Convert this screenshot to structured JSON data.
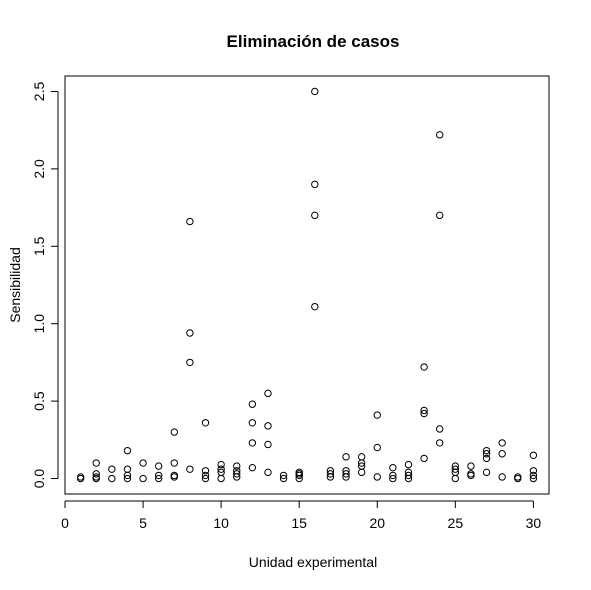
{
  "chart_data": {
    "type": "scatter",
    "title": "Eliminación de casos",
    "xlabel": "Unidad experimental",
    "ylabel": "Sensibilidad",
    "xlim": [
      0.0,
      31.0
    ],
    "ylim": [
      -0.1,
      2.6
    ],
    "xticks": [
      0,
      5,
      10,
      15,
      20,
      25,
      30
    ],
    "xtick_labels": [
      "0",
      "5",
      "10",
      "15",
      "20",
      "25",
      "30"
    ],
    "yticks": [
      0.0,
      0.5,
      1.0,
      1.5,
      2.0,
      2.5
    ],
    "ytick_labels": [
      "0.0",
      "0.5",
      "1.0",
      "1.5",
      "2.0",
      "2.5"
    ],
    "grid": false,
    "marker": "open-circle",
    "points": [
      [
        1,
        0.0
      ],
      [
        1,
        0.01
      ],
      [
        2,
        0.0
      ],
      [
        2,
        0.01
      ],
      [
        2,
        0.03
      ],
      [
        2,
        0.1
      ],
      [
        3,
        0.0
      ],
      [
        3,
        0.06
      ],
      [
        4,
        0.0
      ],
      [
        4,
        0.02
      ],
      [
        4,
        0.06
      ],
      [
        4,
        0.18
      ],
      [
        5,
        0.0
      ],
      [
        5,
        0.1
      ],
      [
        6,
        0.0
      ],
      [
        6,
        0.02
      ],
      [
        6,
        0.08
      ],
      [
        7,
        0.01
      ],
      [
        7,
        0.02
      ],
      [
        7,
        0.1
      ],
      [
        7,
        0.3
      ],
      [
        8,
        0.06
      ],
      [
        8,
        0.75
      ],
      [
        8,
        0.94
      ],
      [
        8,
        1.66
      ],
      [
        9,
        0.0
      ],
      [
        9,
        0.02
      ],
      [
        9,
        0.05
      ],
      [
        9,
        0.36
      ],
      [
        10,
        0.0
      ],
      [
        10,
        0.04
      ],
      [
        10,
        0.06
      ],
      [
        10,
        0.09
      ],
      [
        11,
        0.01
      ],
      [
        11,
        0.03
      ],
      [
        11,
        0.05
      ],
      [
        11,
        0.08
      ],
      [
        12,
        0.07
      ],
      [
        12,
        0.23
      ],
      [
        12,
        0.36
      ],
      [
        12,
        0.48
      ],
      [
        13,
        0.04
      ],
      [
        13,
        0.22
      ],
      [
        13,
        0.34
      ],
      [
        13,
        0.55
      ],
      [
        14,
        0.0
      ],
      [
        14,
        0.02
      ],
      [
        15,
        0.0
      ],
      [
        15,
        0.02
      ],
      [
        15,
        0.03
      ],
      [
        15,
        0.04
      ],
      [
        16,
        1.11
      ],
      [
        16,
        1.7
      ],
      [
        16,
        1.9
      ],
      [
        16,
        2.5
      ],
      [
        17,
        0.01
      ],
      [
        17,
        0.03
      ],
      [
        17,
        0.05
      ],
      [
        18,
        0.01
      ],
      [
        18,
        0.03
      ],
      [
        18,
        0.05
      ],
      [
        18,
        0.14
      ],
      [
        19,
        0.04
      ],
      [
        19,
        0.08
      ],
      [
        19,
        0.1
      ],
      [
        19,
        0.14
      ],
      [
        20,
        0.01
      ],
      [
        20,
        0.2
      ],
      [
        20,
        0.41
      ],
      [
        21,
        0.0
      ],
      [
        21,
        0.02
      ],
      [
        21,
        0.07
      ],
      [
        22,
        0.0
      ],
      [
        22,
        0.02
      ],
      [
        22,
        0.04
      ],
      [
        22,
        0.09
      ],
      [
        23,
        0.13
      ],
      [
        23,
        0.42
      ],
      [
        23,
        0.44
      ],
      [
        23,
        0.72
      ],
      [
        24,
        0.23
      ],
      [
        24,
        0.32
      ],
      [
        24,
        1.7
      ],
      [
        24,
        2.22
      ],
      [
        25,
        0.0
      ],
      [
        25,
        0.04
      ],
      [
        25,
        0.06
      ],
      [
        25,
        0.08
      ],
      [
        26,
        0.02
      ],
      [
        26,
        0.03
      ],
      [
        26,
        0.08
      ],
      [
        27,
        0.04
      ],
      [
        27,
        0.13
      ],
      [
        27,
        0.16
      ],
      [
        27,
        0.18
      ],
      [
        28,
        0.01
      ],
      [
        28,
        0.16
      ],
      [
        28,
        0.23
      ],
      [
        29,
        0.0
      ],
      [
        29,
        0.01
      ],
      [
        30,
        0.0
      ],
      [
        30,
        0.02
      ],
      [
        30,
        0.05
      ],
      [
        30,
        0.15
      ]
    ]
  }
}
